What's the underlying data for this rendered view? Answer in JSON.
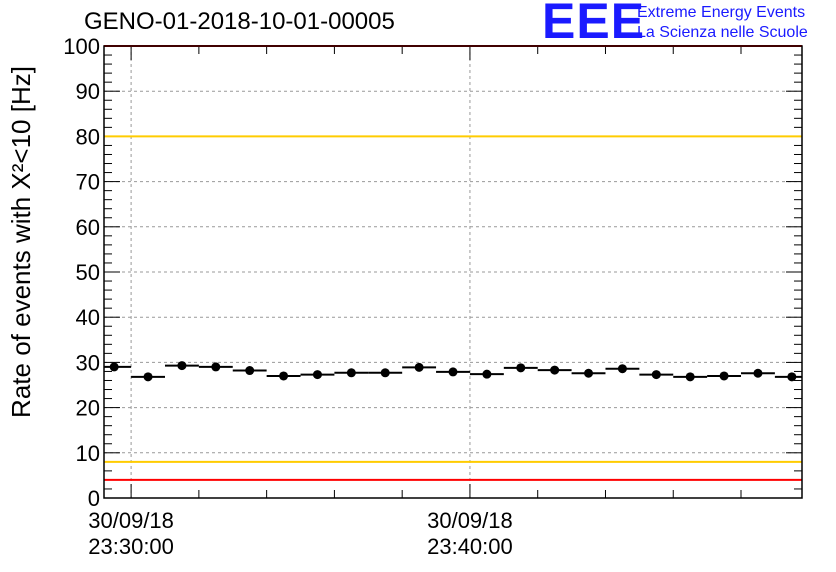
{
  "title": "GENO-01-2018-10-01-00005",
  "logo": {
    "mark": "EEE",
    "line1": "Extreme Energy Events",
    "line2": "La Scienza nelle Scuole",
    "color": "#1a1aff"
  },
  "chart_data": {
    "type": "scatter",
    "ylabel": "Rate of events with X²<10 [Hz]",
    "ylim": [
      0,
      100
    ],
    "yticks": [
      0,
      10,
      20,
      30,
      40,
      50,
      60,
      70,
      80,
      90,
      100
    ],
    "x_tick_labels": [
      {
        "date": "30/09/18",
        "time": "23:30:00",
        "minute": 0
      },
      {
        "date": "30/09/18",
        "time": "23:40:00",
        "minute": 10
      }
    ],
    "xlim_minutes": [
      -0.8,
      19.8
    ],
    "grid": true,
    "reference_lines": [
      {
        "y": 100,
        "color": "#ff0000"
      },
      {
        "y": 80,
        "color": "#ffcc00"
      },
      {
        "y": 8,
        "color": "#ffcc00"
      },
      {
        "y": 4,
        "color": "#ff0000"
      }
    ],
    "bin_width_minutes": 1,
    "series": [
      {
        "x": [
          -0.5,
          0.5,
          1.5,
          2.5,
          3.5,
          4.5,
          5.5,
          6.5,
          7.5,
          8.5,
          9.5,
          10.5,
          11.5,
          12.5,
          13.5,
          14.5,
          15.5,
          16.5,
          17.5,
          18.5,
          19.5
        ],
        "values": [
          29.0,
          26.8,
          29.3,
          29.0,
          28.2,
          27.0,
          27.3,
          27.7,
          27.7,
          28.9,
          27.9,
          27.4,
          28.8,
          28.3,
          27.6,
          28.6,
          27.3,
          26.8,
          27.0,
          27.6,
          26.8
        ],
        "color": "#000000"
      }
    ]
  }
}
